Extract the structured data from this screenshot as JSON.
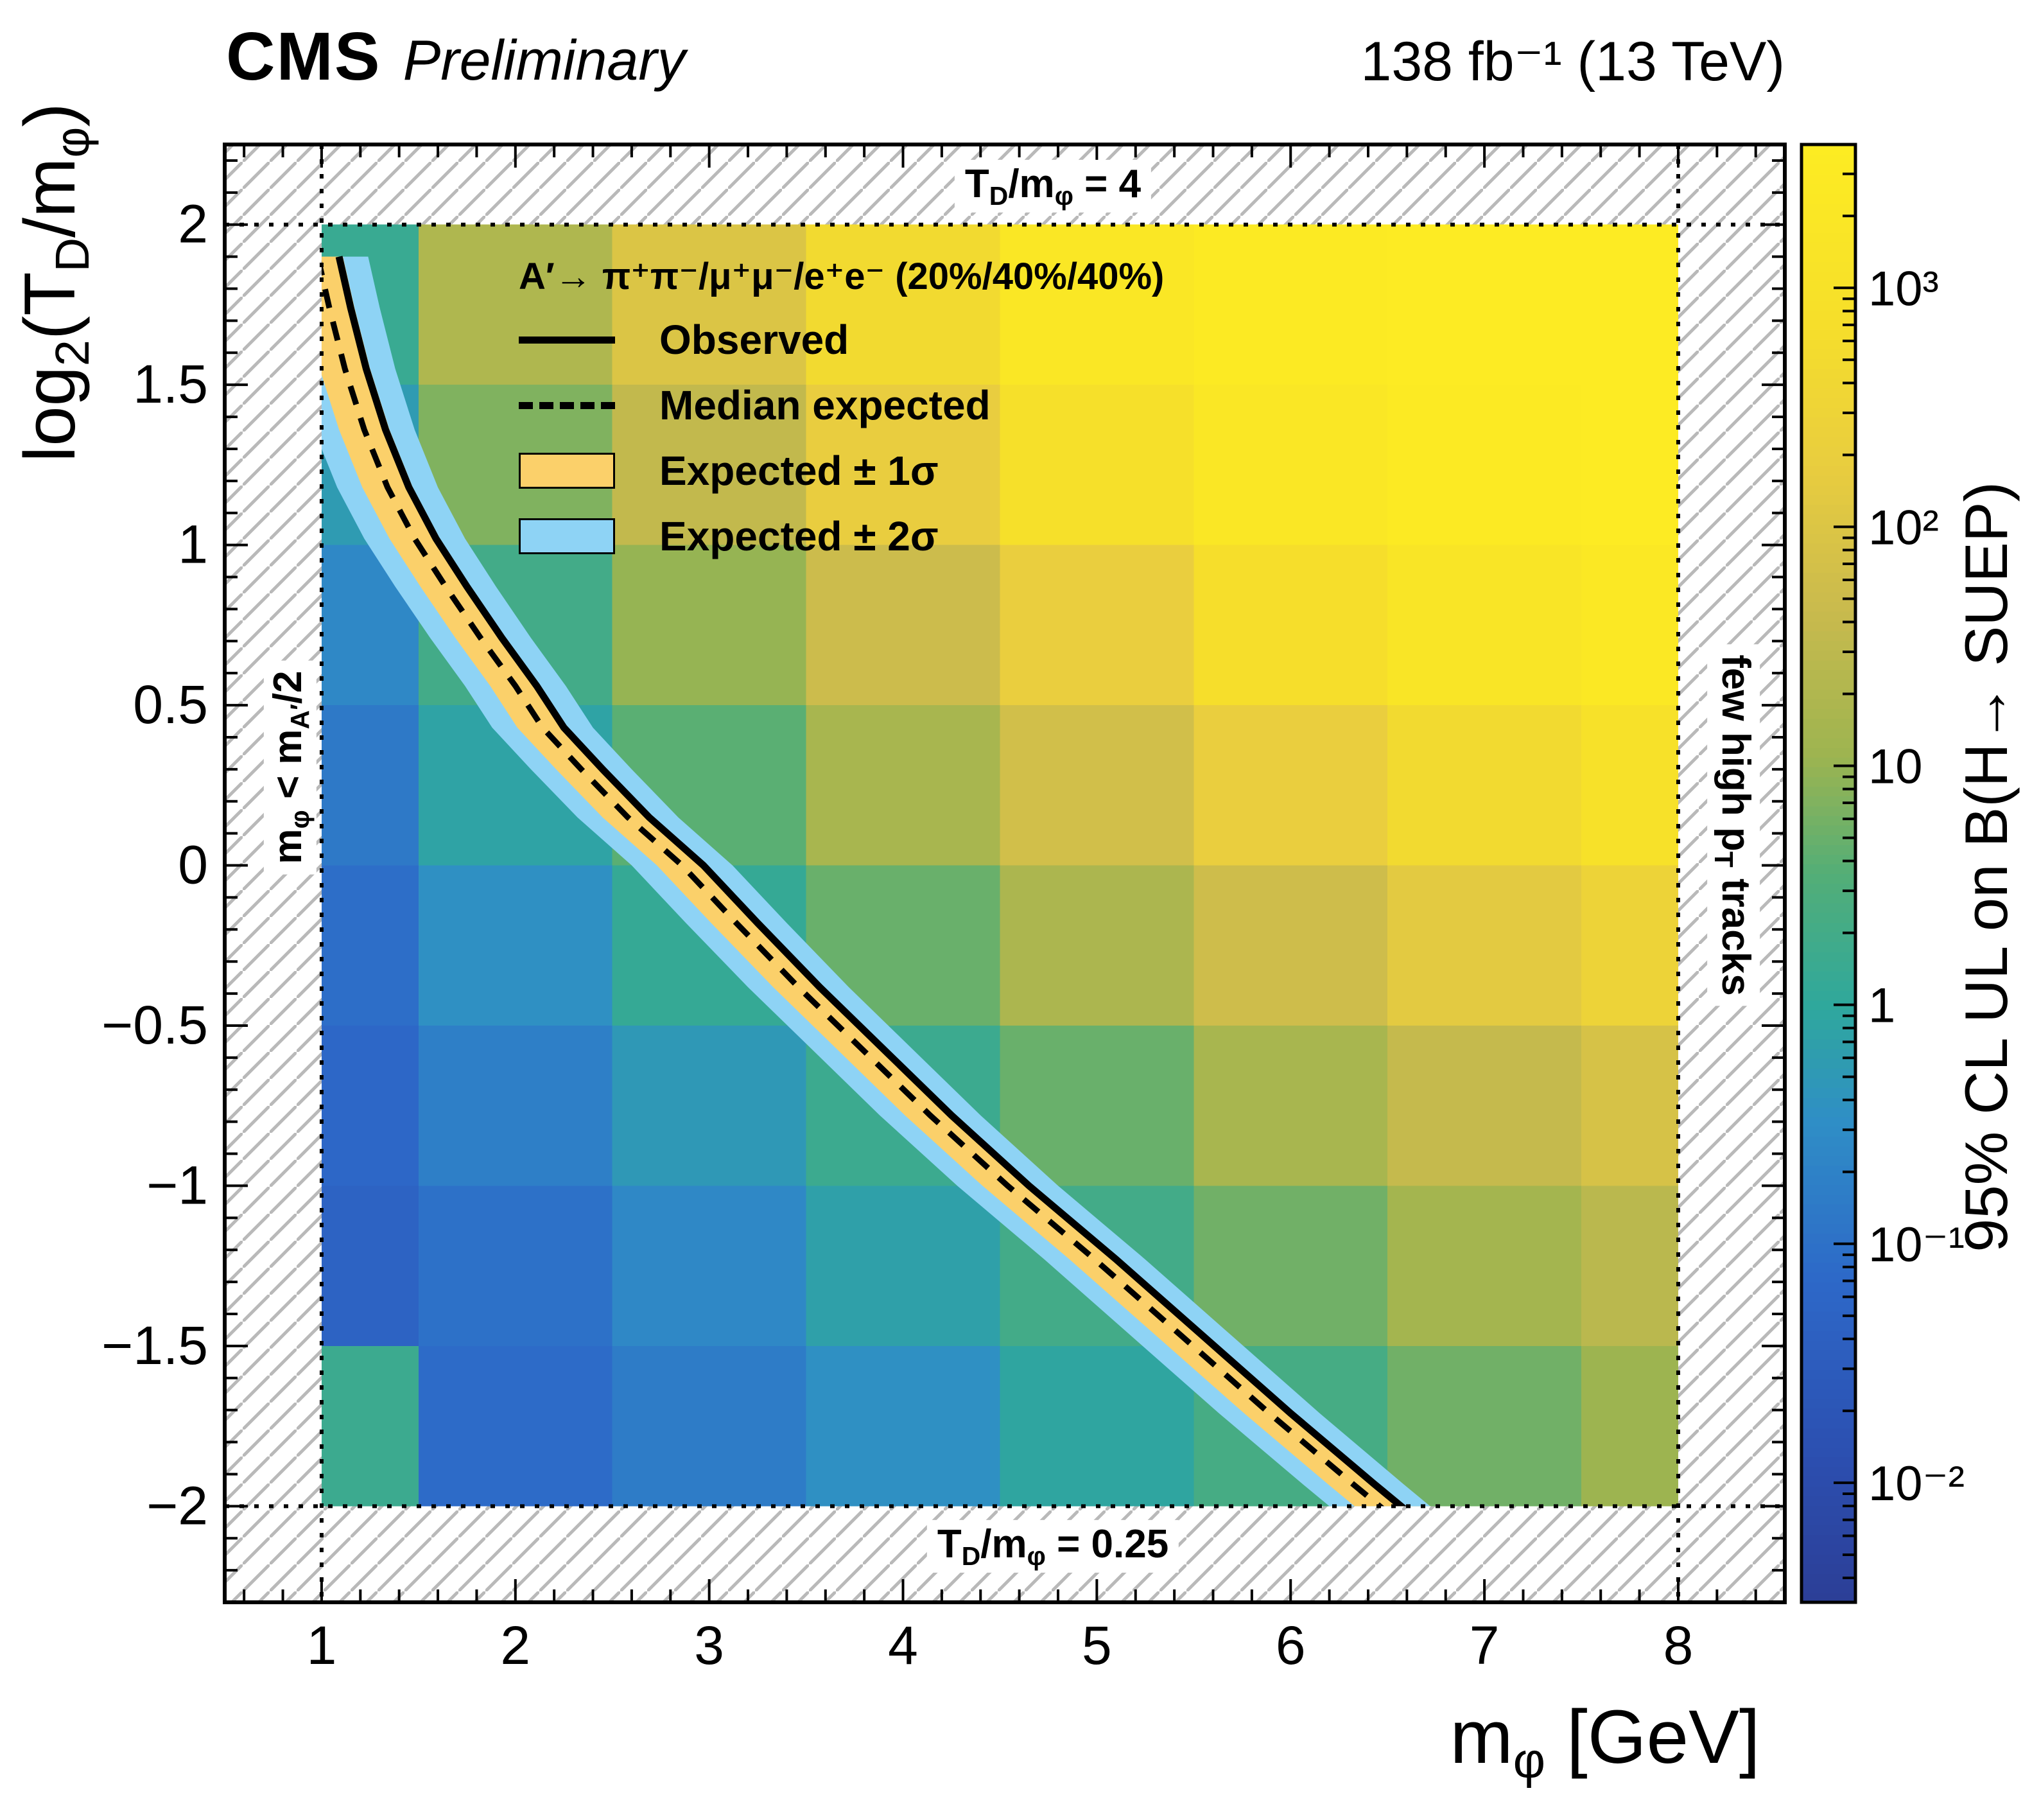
{
  "header": {
    "experiment": "CMS",
    "status": "Preliminary",
    "lumi": "138 fb⁻¹ (13 TeV)"
  },
  "titles": {
    "x": {
      "p1": "m",
      "s1": "φ",
      "p2": " [GeV]"
    },
    "y": {
      "p1": "log",
      "s1": "2",
      "p2": "(T",
      "s2": "D",
      "p3": "/m",
      "s3": "φ",
      "p4": ")"
    },
    "z": "95% CL UL on B(H→ SUEP)"
  },
  "annotations": {
    "top": {
      "p1": "T",
      "s1": "D",
      "p2": "/m",
      "s2": "φ",
      "p3": " = 4"
    },
    "bottom": {
      "p1": "T",
      "s1": "D",
      "p2": "/m",
      "s2": "φ",
      "p3": " = 0.25"
    },
    "left": {
      "p1": "m",
      "s1": "φ",
      "p2": " < m",
      "s2": "A′",
      "p3": "/2"
    },
    "right": {
      "p1": "few high p",
      "s1": "T",
      "p2": " tracks"
    }
  },
  "legend": {
    "title": "A′→ π⁺π⁻/μ⁺μ⁻/e⁺e⁻ (20%/40%/40%)",
    "items": [
      {
        "label": "Observed",
        "marker": "solid-line"
      },
      {
        "label": "Median expected",
        "marker": "dashed-line"
      },
      {
        "label": "Expected ± 1σ",
        "marker": "box",
        "swatch": "#fbd06a"
      },
      {
        "label": "Expected ± 2σ",
        "marker": "box",
        "swatch": "#8ed3f5"
      }
    ]
  },
  "chart_data": {
    "type": "heatmap",
    "title": "CMS Preliminary 95% CL upper limits on B(H→SUEP)",
    "x_range": [
      0.5,
      8.55
    ],
    "y_range": [
      -2.3,
      2.25
    ],
    "inner_x": [
      1,
      8
    ],
    "inner_y": [
      -2,
      2
    ],
    "x_ticks": [
      {
        "v": 1,
        "label": "1"
      },
      {
        "v": 2,
        "label": "2"
      },
      {
        "v": 3,
        "label": "3"
      },
      {
        "v": 4,
        "label": "4"
      },
      {
        "v": 5,
        "label": "5"
      },
      {
        "v": 6,
        "label": "6"
      },
      {
        "v": 7,
        "label": "7"
      },
      {
        "v": 8,
        "label": "8"
      }
    ],
    "x_minor_step": 0.2,
    "y_ticks": [
      {
        "v": 2,
        "label": "2"
      },
      {
        "v": 1.5,
        "label": "1.5"
      },
      {
        "v": 1,
        "label": "1"
      },
      {
        "v": 0.5,
        "label": "0.5"
      },
      {
        "v": 0,
        "label": "0"
      },
      {
        "v": -0.5,
        "label": "−0.5"
      },
      {
        "v": -1,
        "label": "−1"
      },
      {
        "v": -1.5,
        "label": "−1.5"
      },
      {
        "v": -2,
        "label": "−2"
      }
    ],
    "y_minor_step": 0.1,
    "z_log_range": [
      -2.5,
      3.6
    ],
    "z_ticks": [
      {
        "v": -2,
        "label": "10⁻²"
      },
      {
        "v": -1,
        "label": "10⁻¹"
      },
      {
        "v": 0,
        "label": "1"
      },
      {
        "v": 1,
        "label": "10"
      },
      {
        "v": 2,
        "label": "10²"
      },
      {
        "v": 3,
        "label": "10³"
      }
    ],
    "heatmap": {
      "x_edges": [
        1,
        1.5,
        2.5,
        3.5,
        4.5,
        5.5,
        6.5,
        7.5,
        8
      ],
      "y_edges_top_to_bottom": [
        2,
        1.5,
        1,
        0.5,
        0,
        -0.5,
        -1,
        -1.5,
        -2
      ],
      "log10_values": [
        [
          0.15,
          1.3,
          2.0,
          2.7,
          3.3,
          3.5,
          3.55,
          3.55
        ],
        [
          -0.25,
          0.85,
          1.55,
          2.25,
          2.9,
          3.3,
          3.5,
          3.55
        ],
        [
          -0.6,
          0.3,
          1.0,
          1.7,
          2.3,
          2.85,
          3.2,
          3.4
        ],
        [
          -0.85,
          -0.1,
          0.6,
          1.2,
          1.8,
          2.3,
          2.7,
          3.0
        ],
        [
          -1.05,
          -0.45,
          0.1,
          0.7,
          1.25,
          1.75,
          2.15,
          2.45
        ],
        [
          -1.2,
          -0.75,
          -0.3,
          0.2,
          0.7,
          1.2,
          1.6,
          1.9
        ],
        [
          -1.3,
          -1.0,
          -0.6,
          -0.15,
          0.3,
          0.75,
          1.15,
          1.45
        ],
        [
          0.2,
          -1.1,
          -0.8,
          -0.45,
          -0.05,
          0.35,
          0.75,
          1.05
        ]
      ]
    },
    "colormap_stops": [
      [
        0.0,
        "#2c3e96"
      ],
      [
        0.1,
        "#2c4fb0"
      ],
      [
        0.22,
        "#2d68c8"
      ],
      [
        0.33,
        "#2f8ec6"
      ],
      [
        0.41,
        "#2fa89c"
      ],
      [
        0.5,
        "#53ae77"
      ],
      [
        0.58,
        "#9cb450"
      ],
      [
        0.68,
        "#c9ba4d"
      ],
      [
        0.78,
        "#e9cd3f"
      ],
      [
        0.88,
        "#f6df2a"
      ],
      [
        1.0,
        "#fdec22"
      ]
    ],
    "contours": {
      "median_expected": [
        [
          0.98,
          1.9
        ],
        [
          1.04,
          1.74
        ],
        [
          1.12,
          1.55
        ],
        [
          1.22,
          1.36
        ],
        [
          1.34,
          1.18
        ],
        [
          1.48,
          1.02
        ],
        [
          1.64,
          0.87
        ],
        [
          1.82,
          0.71
        ],
        [
          2.0,
          0.56
        ],
        [
          2.14,
          0.43
        ],
        [
          2.34,
          0.3
        ],
        [
          2.58,
          0.15
        ],
        [
          2.86,
          0.0
        ],
        [
          3.14,
          -0.18
        ],
        [
          3.46,
          -0.38
        ],
        [
          3.8,
          -0.58
        ],
        [
          4.14,
          -0.78
        ],
        [
          4.54,
          -1.0
        ],
        [
          4.99,
          -1.23
        ],
        [
          5.44,
          -1.47
        ],
        [
          5.89,
          -1.71
        ],
        [
          6.32,
          -1.93
        ],
        [
          6.74,
          -2.14
        ],
        [
          6.97,
          -2.27
        ]
      ],
      "observed_dx": 0.11,
      "sigma1_dx": 0.13,
      "sigma2_dx": 0.26
    },
    "band_colors": {
      "sigma1": "#fbd06a",
      "sigma2": "#8ed3f5"
    },
    "line_colors": {
      "observed": "#000000",
      "median": "#000000"
    },
    "hatch_color": "#b9b9b9"
  }
}
